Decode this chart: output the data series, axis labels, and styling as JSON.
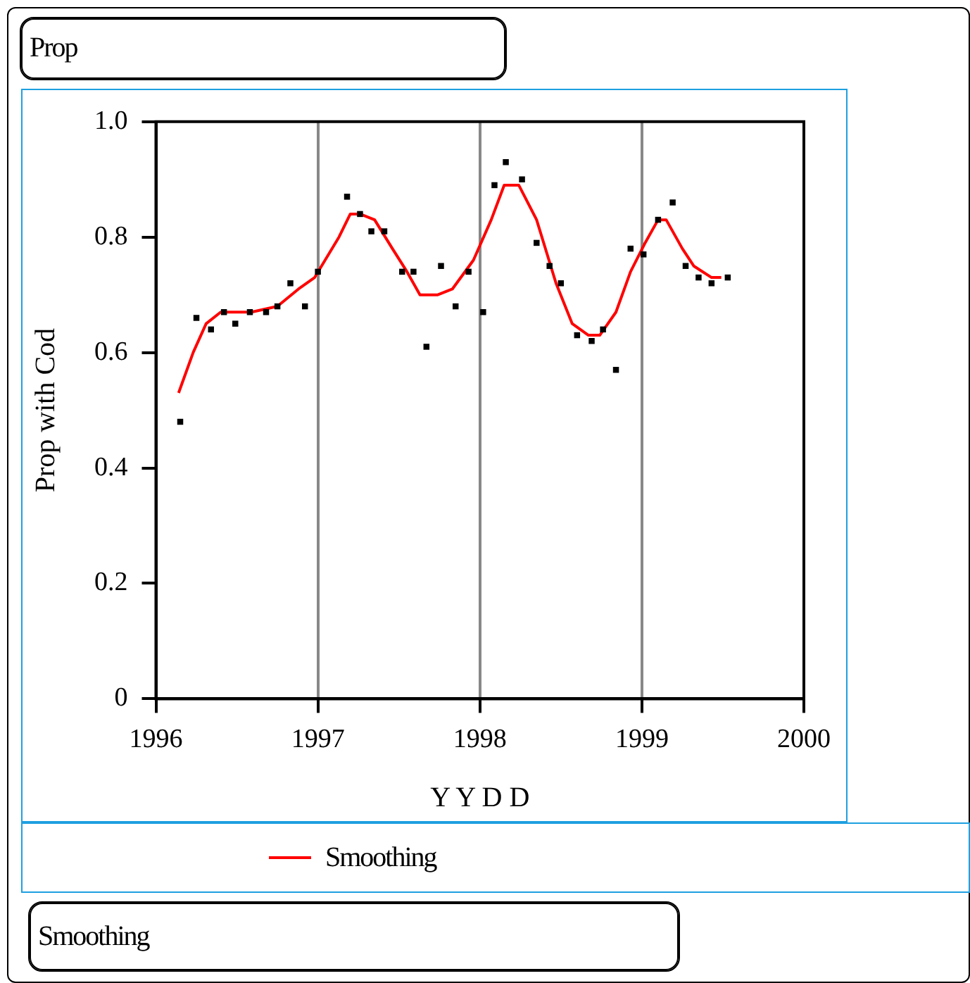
{
  "chart_data": {
    "type": "scatter",
    "title": "Prop",
    "xlabel": "Y Y D D",
    "ylabel": "Prop with Cod",
    "xlim": [
      1996,
      2000
    ],
    "xticks": [
      1996,
      1997,
      1998,
      1999,
      2000
    ],
    "ylim": [
      0,
      1
    ],
    "yticks": [
      0,
      {
        "value": 0.2,
        "label": "0.2"
      },
      {
        "value": 0.4,
        "label": "0.4"
      },
      {
        "value": 0.6,
        "label": "0.6"
      },
      {
        "value": 0.8,
        "label": "0.8"
      },
      {
        "value": 1,
        "label": "1.0"
      }
    ],
    "grid": "x",
    "legend": "bottom",
    "annotations": [
      "Smoothing"
    ],
    "series": [
      {
        "type": "scatter",
        "color": "#000000",
        "marker": "square",
        "x": [
          1996.15,
          1996.25,
          1996.34,
          1996.42,
          1996.49,
          1996.58,
          1996.68,
          1996.75,
          1996.83,
          1996.92,
          1997.0,
          1997.18,
          1997.26,
          1997.33,
          1997.41,
          1997.52,
          1997.59,
          1997.67,
          1997.76,
          1997.85,
          1997.93,
          1998.02,
          1998.09,
          1998.16,
          1998.26,
          1998.35,
          1998.43,
          1998.5,
          1998.6,
          1998.69,
          1998.76,
          1998.84,
          1998.93,
          1999.01,
          1999.1,
          1999.19,
          1999.27,
          1999.35,
          1999.43,
          1999.53
        ],
        "values": [
          0.48,
          0.66,
          0.64,
          0.67,
          0.65,
          0.67,
          0.67,
          0.68,
          0.72,
          0.68,
          0.74,
          0.87,
          0.84,
          0.81,
          0.81,
          0.74,
          0.74,
          0.61,
          0.75,
          0.68,
          0.74,
          0.67,
          0.89,
          0.93,
          0.9,
          0.79,
          0.75,
          0.72,
          0.63,
          0.62,
          0.64,
          0.57,
          0.78,
          0.77,
          0.83,
          0.86,
          0.75,
          0.73,
          0.72,
          0.73
        ]
      },
      {
        "type": "line",
        "name": "Smoothing",
        "color": "#ff0000",
        "marker": "none",
        "x": [
          1996.14,
          1996.23,
          1996.31,
          1996.4,
          1996.59,
          1996.75,
          1996.88,
          1996.98,
          1997.13,
          1997.2,
          1997.26,
          1997.35,
          1997.46,
          1997.55,
          1997.63,
          1997.74,
          1997.83,
          1997.96,
          1998.07,
          1998.15,
          1998.24,
          1998.35,
          1998.47,
          1998.57,
          1998.67,
          1998.74,
          1998.84,
          1998.93,
          1999.02,
          1999.1,
          1999.15,
          1999.25,
          1999.32,
          1999.43,
          1999.49
        ],
        "values": [
          0.53,
          0.6,
          0.65,
          0.67,
          0.67,
          0.68,
          0.71,
          0.73,
          0.8,
          0.84,
          0.84,
          0.83,
          0.78,
          0.74,
          0.7,
          0.7,
          0.71,
          0.76,
          0.83,
          0.89,
          0.89,
          0.83,
          0.72,
          0.65,
          0.63,
          0.63,
          0.67,
          0.74,
          0.79,
          0.83,
          0.83,
          0.78,
          0.75,
          0.73,
          0.73
        ]
      }
    ]
  }
}
